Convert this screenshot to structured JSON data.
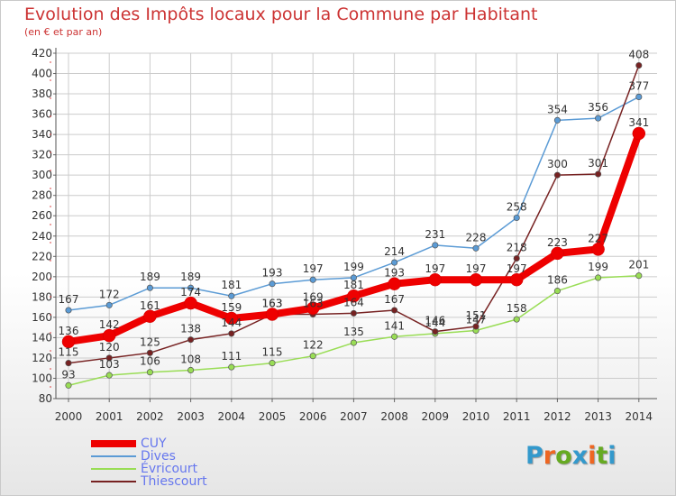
{
  "title": "Evolution des Impôts locaux pour la Commune par Habitant",
  "subtitle": "(en € et par an)",
  "logo_text": "Proxiti",
  "colors": {
    "title": "#cc3333",
    "grid": "#cccccc",
    "legend_text": "#6677ee"
  },
  "chart_data": {
    "type": "line",
    "title": "Evolution des Impôts locaux pour la Commune par Habitant",
    "subtitle": "(en € et par an)",
    "x": [
      2000,
      2001,
      2002,
      2003,
      2004,
      2005,
      2006,
      2007,
      2008,
      2009,
      2010,
      2011,
      2012,
      2013,
      2014
    ],
    "ylim": [
      80,
      420
    ],
    "yticks": [
      80,
      100,
      120,
      140,
      160,
      180,
      200,
      220,
      240,
      260,
      280,
      300,
      320,
      340,
      360,
      380,
      400,
      420
    ],
    "grid": true,
    "legend_position": "bottom-left",
    "series": [
      {
        "name": "CUY",
        "color": "#ee0000",
        "emphasis": true,
        "values": [
          136,
          142,
          161,
          174,
          159,
          163,
          169,
          181,
          193,
          197,
          197,
          197,
          223,
          227,
          341
        ]
      },
      {
        "name": "Dives",
        "color": "#5b9bd5",
        "values": [
          167,
          172,
          189,
          189,
          181,
          193,
          197,
          199,
          214,
          231,
          228,
          258,
          354,
          356,
          377
        ]
      },
      {
        "name": "Évricourt",
        "color": "#99dd55",
        "values": [
          93,
          103,
          106,
          108,
          111,
          115,
          122,
          135,
          141,
          144,
          147,
          158,
          186,
          199,
          201
        ]
      },
      {
        "name": "Thiescourt",
        "color": "#772222",
        "values": [
          115,
          120,
          125,
          138,
          144,
          163,
          163,
          164,
          167,
          146,
          151,
          218,
          300,
          301,
          408
        ]
      }
    ]
  }
}
